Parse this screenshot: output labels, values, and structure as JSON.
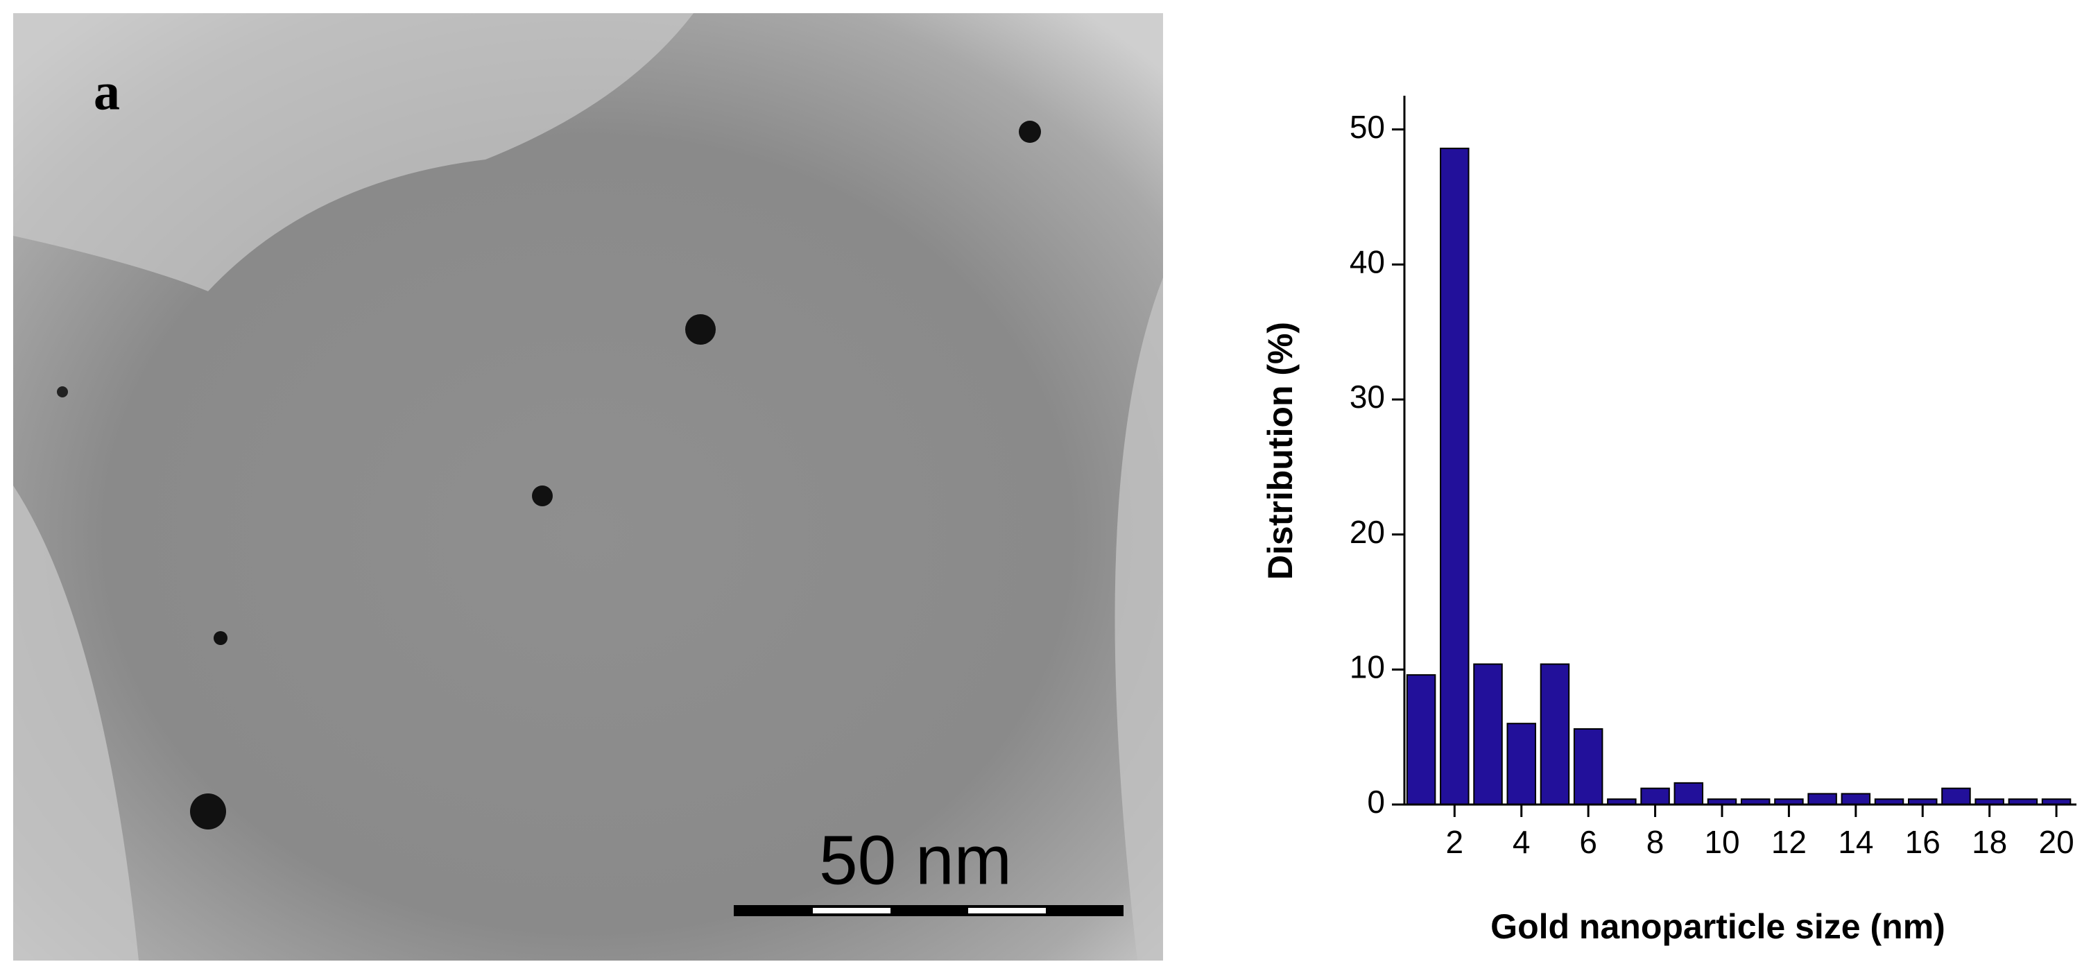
{
  "micrograph": {
    "panel_label": "a",
    "scale_bar": "50 nm"
  },
  "chart_data": {
    "type": "bar",
    "x_label": "Gold nanoparticle size (nm)",
    "y_label": "Distribution (%)",
    "x": [
      1,
      2,
      3,
      4,
      5,
      6,
      7,
      8,
      9,
      10,
      11,
      12,
      13,
      14,
      15,
      16,
      17,
      18,
      19,
      20
    ],
    "values": [
      9.6,
      48.6,
      10.4,
      6.0,
      10.4,
      5.6,
      0.4,
      1.2,
      1.6,
      0.4,
      0.4,
      0.4,
      0.8,
      0.8,
      0.4,
      0.4,
      1.2,
      0.4,
      0.4,
      0.4
    ],
    "color": "#22109a",
    "xlim": [
      0.5,
      20.6
    ],
    "xticks": [
      2,
      4,
      6,
      8,
      10,
      12,
      14,
      16,
      18,
      20
    ],
    "ylim": [
      0,
      52.5
    ],
    "yticks": [
      0,
      10,
      20,
      30,
      40,
      50
    ],
    "grid": false
  }
}
